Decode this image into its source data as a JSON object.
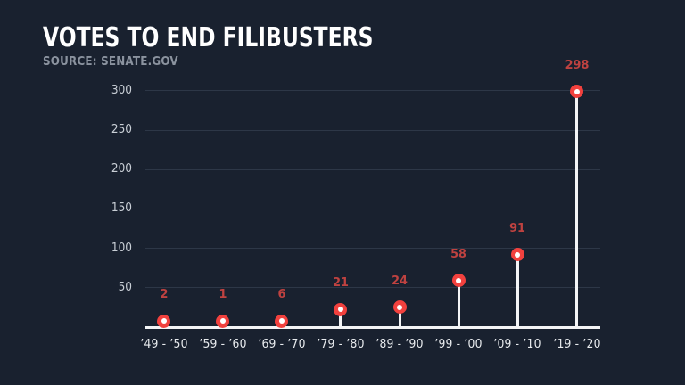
{
  "header": {
    "title": "VOTES TO END FILIBUSTERS",
    "source": "SOURCE: SENATE.GOV"
  },
  "colors": {
    "bg": "#19212f",
    "title": "#ffffff",
    "subtitle": "#8b939f",
    "grid": "#2d3747",
    "axis": "#f3f4f6",
    "dot": "#f2413e",
    "dotcenter": "#ffffff",
    "vlabel": "#bf4240",
    "ylabel": "#c9cfd6",
    "xlabel": "#e8ebee"
  },
  "chart_data": {
    "type": "bar",
    "style": "lollipop",
    "title": "VOTES TO END FILIBUSTERS",
    "subtitle": "SOURCE: SENATE.GOV",
    "categories": [
      "’49 - ’50",
      "’59 - ’60",
      "’69 - ’70",
      "’79 - ’80",
      "’89 - ’90",
      "’99 - ’00",
      "’09 - ’10",
      "’19 - ’20"
    ],
    "values": [
      2,
      1,
      6,
      21,
      24,
      58,
      91,
      298
    ],
    "xlabel": "",
    "ylabel": "",
    "yticks": [
      50,
      100,
      150,
      200,
      250,
      300
    ],
    "ylim": [
      0,
      320
    ],
    "grid": true,
    "legend": false,
    "marker": "filled-circle-with-white-center",
    "data_labels_shown": true
  }
}
